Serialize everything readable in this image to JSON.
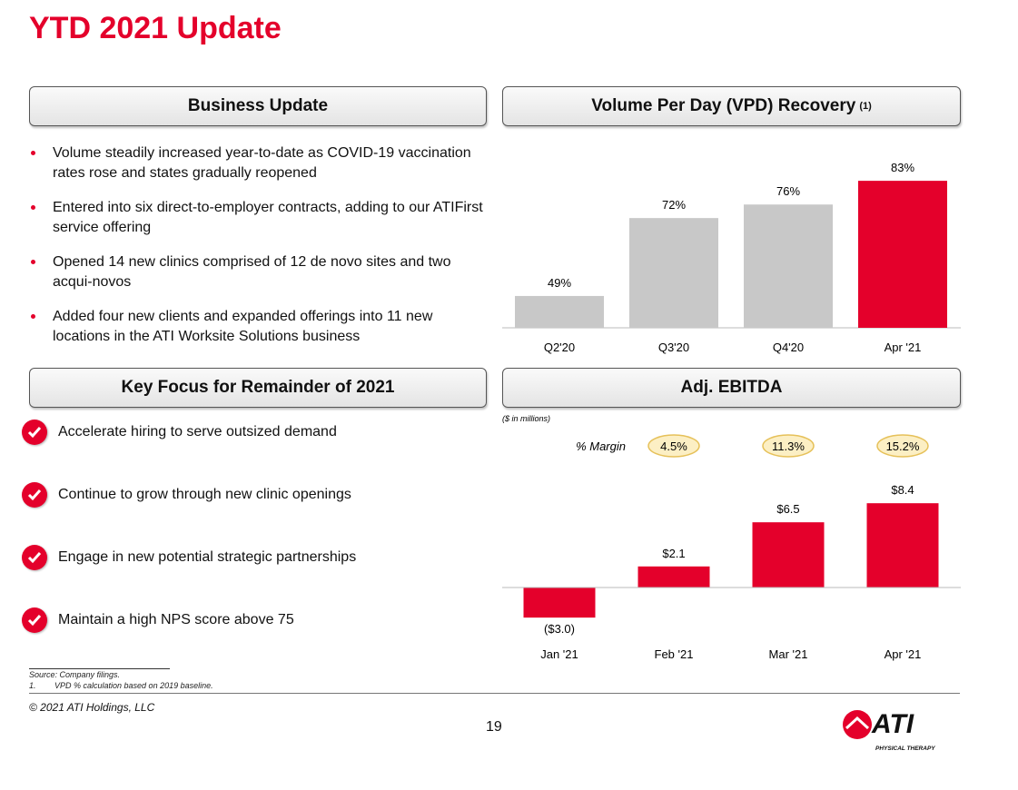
{
  "title": "YTD 2021 Update",
  "business_update": {
    "header": "Business Update",
    "bullets": [
      "Volume steadily increased year-to-date as COVID-19 vaccination rates rose and states gradually reopened",
      "Entered into six direct-to-employer contracts, adding to our ATIFirst service offering",
      "Opened 14 new clinics comprised of 12 de novo sites and two acqui-novos",
      "Added four new clients and expanded offerings into 11 new locations in the ATI Worksite Solutions business"
    ]
  },
  "key_focus": {
    "header": "Key Focus for Remainder of 2021",
    "items": [
      "Accelerate hiring to serve outsized demand",
      "Continue to grow through new clinic openings",
      "Engage in new potential strategic partnerships",
      "Maintain a high NPS score above 75"
    ]
  },
  "chart_data": [
    {
      "type": "bar",
      "title": "Volume Per Day (VPD) Recovery",
      "title_sup": "(1)",
      "categories": [
        "Q2'20",
        "Q3'20",
        "Q4'20",
        "Apr '21"
      ],
      "values": [
        49,
        72,
        76,
        83
      ],
      "labels": [
        "49%",
        "72%",
        "76%",
        "83%"
      ],
      "colors": [
        "#c8c8c8",
        "#c8c8c8",
        "#c8c8c8",
        "#e4002b"
      ],
      "ylabel": "",
      "xlabel": ""
    },
    {
      "type": "bar",
      "title": "Adj. EBITDA",
      "unit_note": "($ in millions)",
      "margin_label": "% Margin",
      "margins": [
        "4.5%",
        "11.3%",
        "15.2%"
      ],
      "categories": [
        "Jan '21",
        "Feb '21",
        "Mar '21",
        "Apr '21"
      ],
      "values": [
        -3.0,
        2.1,
        6.5,
        8.4
      ],
      "labels": [
        "($3.0)",
        "$2.1",
        "$6.5",
        "$8.4"
      ],
      "color": "#e4002b"
    }
  ],
  "footer": {
    "source": "Source: Company filings.",
    "note_num": "1.",
    "note": "VPD % calculation based on 2019 baseline.",
    "copyright": "© 2021 ATI Holdings, LLC",
    "page": "19",
    "logo_text": "ATI",
    "logo_sub": "PHYSICAL THERAPY"
  },
  "colors": {
    "brand": "#e4002b",
    "gray_bar": "#c8c8c8",
    "margin_fill": "#fcefc4",
    "margin_border": "#e6c15a"
  }
}
